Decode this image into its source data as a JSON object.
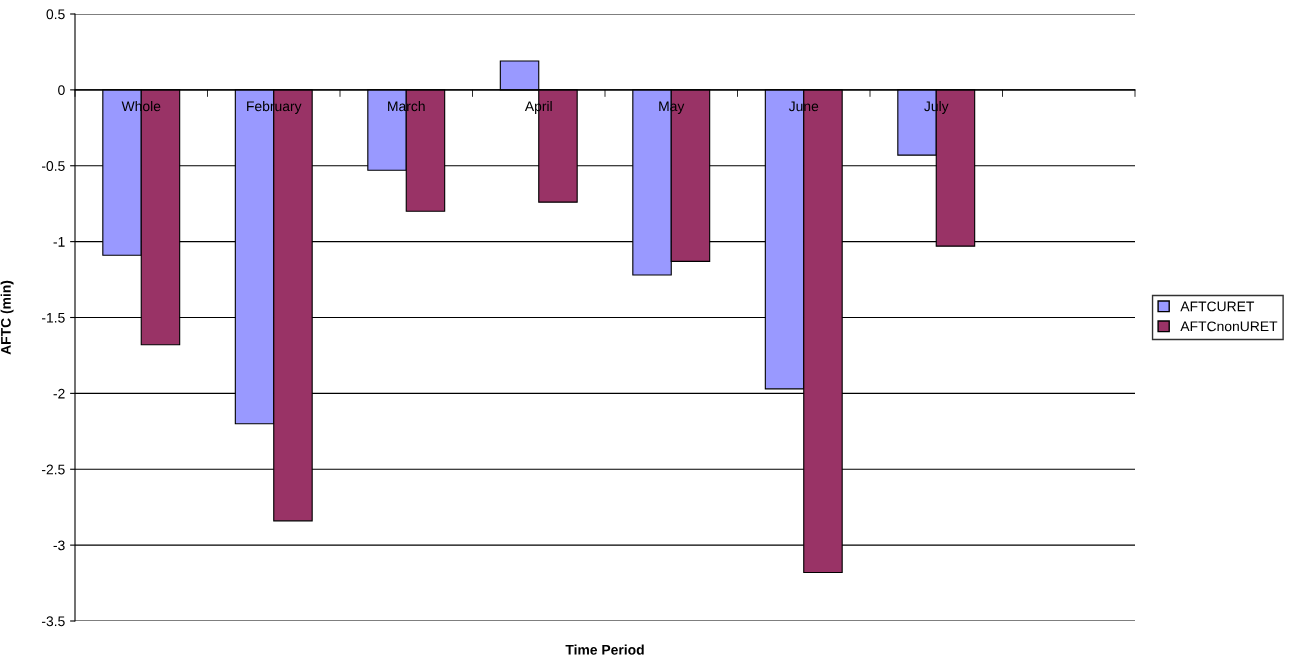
{
  "chart_data": {
    "type": "bar",
    "xlabel": "Time Period",
    "ylabel": "AFTC (min)",
    "categories": [
      "Whole",
      "February",
      "March",
      "April",
      "May",
      "June",
      "July",
      null
    ],
    "series": [
      {
        "name": "AFTCURET",
        "color": "#9999ff",
        "values": [
          -1.09,
          -2.2,
          -0.53,
          0.19,
          -1.22,
          -1.97,
          -0.43,
          null
        ]
      },
      {
        "name": "AFTCnonURET",
        "color": "#993366",
        "values": [
          -1.68,
          -2.84,
          -0.8,
          -0.74,
          -1.13,
          -3.18,
          -1.03,
          null
        ]
      }
    ],
    "ylim": [
      -3.5,
      0.5
    ],
    "yticks": [
      -3.5,
      -3,
      -2.5,
      -2,
      -1.5,
      -1,
      -0.5,
      0,
      0.5
    ],
    "grid": "y",
    "legend": "right"
  }
}
